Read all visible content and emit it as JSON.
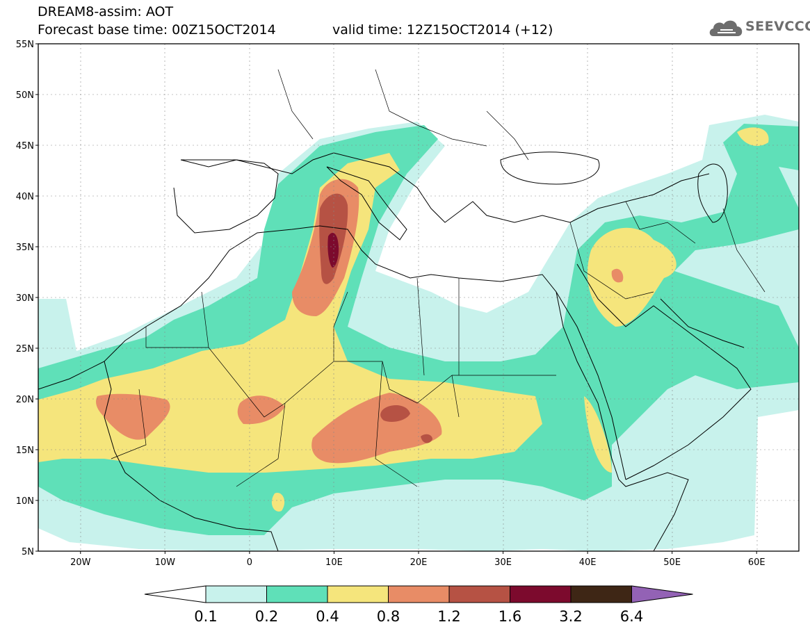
{
  "header": {
    "line1": "DREAM8-assim: AOT",
    "line2": "Forecast base time: 00Z15OCT2014",
    "line3": "valid time: 12Z15OCT2014 (+12)"
  },
  "logo": {
    "text": "SEEVCCC",
    "icon": "cloud-icon"
  },
  "map": {
    "lon_range": [
      -25,
      65
    ],
    "lat_range": [
      5,
      55
    ],
    "lat_ticks": [
      "5N",
      "10N",
      "15N",
      "20N",
      "25N",
      "30N",
      "35N",
      "40N",
      "45N",
      "50N",
      "55N"
    ],
    "lon_ticks": [
      "20W",
      "10W",
      "0",
      "10E",
      "20E",
      "30E",
      "40E",
      "50E",
      "60E"
    ]
  },
  "colorbar": {
    "labels": [
      "0.1",
      "0.2",
      "0.4",
      "0.8",
      "1.2",
      "1.6",
      "3.2",
      "6.4"
    ],
    "colors": [
      "#c8f2ec",
      "#5fe0b8",
      "#f5e57c",
      "#e88c66",
      "#b65244",
      "#7c0a2d",
      "#3e2615"
    ],
    "under_color": "#ffffff",
    "over_color": "#9362b5"
  }
}
